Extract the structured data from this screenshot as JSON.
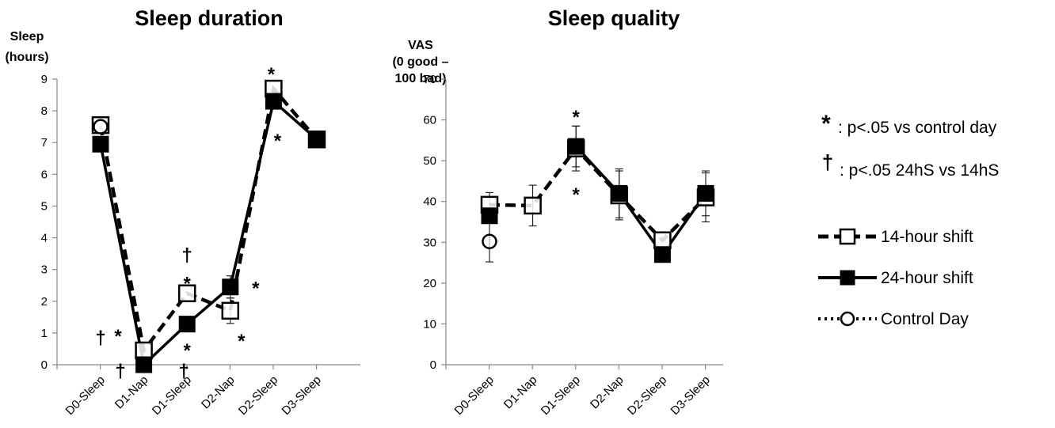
{
  "chart_data": [
    {
      "type": "line",
      "title": "Sleep duration",
      "ylabel_lines": [
        "Sleep",
        "(hours)"
      ],
      "ylim": [
        0,
        9
      ],
      "yticks": [
        0,
        1,
        2,
        3,
        4,
        5,
        6,
        7,
        8,
        9
      ],
      "categories": [
        "D0-Sleep",
        "D1-Nap",
        "D1-Sleep",
        "D2-Nap",
        "D2-Sleep",
        "D3-Sleep"
      ],
      "series": [
        {
          "name": "14-hour shift",
          "style": "dashed",
          "marker": "open-square",
          "values": [
            7.55,
            0.45,
            2.25,
            1.7,
            8.7,
            7.1
          ],
          "error": [
            0,
            0,
            0,
            0.4,
            0,
            0
          ]
        },
        {
          "name": "24-hour shift",
          "style": "solid",
          "marker": "filled-square",
          "values": [
            6.95,
            0.0,
            1.28,
            2.45,
            8.3,
            7.1
          ],
          "error": [
            0,
            0,
            0,
            0.35,
            0,
            0
          ]
        },
        {
          "name": "Control Day",
          "style": "dotted",
          "marker": "open-circle",
          "values": [
            7.5,
            null,
            null,
            null,
            null,
            null
          ],
          "error": [
            0,
            0,
            0,
            0,
            0,
            0
          ]
        }
      ],
      "annotations": [
        {
          "text": "*",
          "category": 0,
          "y": 1.0,
          "dx": 22
        },
        {
          "text": "†",
          "category": 0,
          "y": 0.95,
          "dx": 0
        },
        {
          "text": "†",
          "category": 0,
          "y": -0.1,
          "dx": 25
        },
        {
          "text": "†",
          "category": 2,
          "y": 3.55,
          "dx": 0
        },
        {
          "text": "*",
          "category": 2,
          "y": 2.65,
          "dx": 0
        },
        {
          "text": "*",
          "category": 2,
          "y": 0.55,
          "dx": 0
        },
        {
          "text": "†",
          "category": 2,
          "y": -0.1,
          "dx": -4
        },
        {
          "text": "*",
          "category": 3,
          "y": 2.5,
          "dx": 32
        },
        {
          "text": "*",
          "category": 3,
          "y": 0.85,
          "dx": 14
        },
        {
          "text": "*",
          "category": 4,
          "y": 9.25,
          "dx": -3
        },
        {
          "text": "*",
          "category": 4,
          "y": 7.15,
          "dx": 5
        }
      ]
    },
    {
      "type": "line",
      "title": "Sleep quality",
      "ylabel_lines": [
        "VAS",
        "(0 good –",
        "100 bad)"
      ],
      "ylim": [
        0,
        70
      ],
      "yticks": [
        0,
        10,
        20,
        30,
        40,
        50,
        60,
        70
      ],
      "categories": [
        "D0-Sleep",
        "D1-Nap",
        "D1-Sleep",
        "D2-Nap",
        "D2-Sleep",
        "D3-Sleep"
      ],
      "series": [
        {
          "name": "14-hour shift",
          "style": "dashed",
          "marker": "open-square",
          "values": [
            39.2,
            39.0,
            53.0,
            41.5,
            30.5,
            41.0
          ],
          "error": [
            3.0,
            5.0,
            5.5,
            6.0,
            0,
            6.0
          ]
        },
        {
          "name": "24-hour shift",
          "style": "solid",
          "marker": "filled-square",
          "values": [
            36.5,
            null,
            53.5,
            42.0,
            27.0,
            42.0
          ],
          "error": [
            0,
            0,
            5.0,
            6.0,
            0,
            5.5
          ]
        },
        {
          "name": "Control Day",
          "style": "dotted",
          "marker": "open-circle",
          "values": [
            30.2,
            null,
            null,
            null,
            null,
            null
          ],
          "error": [
            5.0,
            0,
            0,
            0,
            0,
            0
          ]
        }
      ],
      "annotations": [
        {
          "text": "*",
          "category": 2,
          "y": 61.5,
          "dx": 0
        },
        {
          "text": "*",
          "category": 2,
          "y": 42.5,
          "dx": 0
        }
      ]
    }
  ],
  "legend": {
    "notes": [
      {
        "symbol": "*",
        "text": ": p<.05 vs control day"
      },
      {
        "symbol": "†",
        "text": ": p<.05 24hS vs 14hS"
      }
    ],
    "entries": [
      "14-hour shift",
      "24-hour shift",
      "Control Day"
    ]
  }
}
